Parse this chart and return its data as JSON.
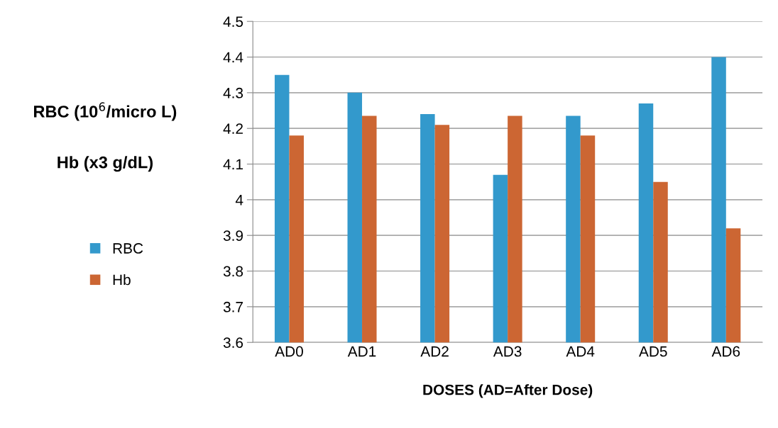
{
  "chart_data": {
    "type": "bar",
    "ylabel": "RBC (10$^{6}$/micro L)\n\nHb (x3 g/dL)",
    "xlabel": "DOSES (AD=After Dose)",
    "categories": [
      "AD0",
      "AD1",
      "AD2",
      "AD3",
      "AD4",
      "AD5",
      "AD6"
    ],
    "series": [
      {
        "name": "RBC",
        "color": "#3399cc",
        "values": [
          4.35,
          4.3,
          4.24,
          4.07,
          4.235,
          4.27,
          4.4
        ]
      },
      {
        "name": "Hb",
        "color": "#cc6633",
        "values": [
          4.18,
          4.235,
          4.21,
          4.235,
          4.18,
          4.05,
          3.92
        ]
      }
    ],
    "ylim": [
      3.6,
      4.5
    ],
    "yticks": [
      3.6,
      3.7,
      3.8,
      3.9,
      4,
      4.1,
      4.2,
      4.3,
      4.4,
      4.5
    ],
    "grid": "y",
    "legend": "left"
  }
}
